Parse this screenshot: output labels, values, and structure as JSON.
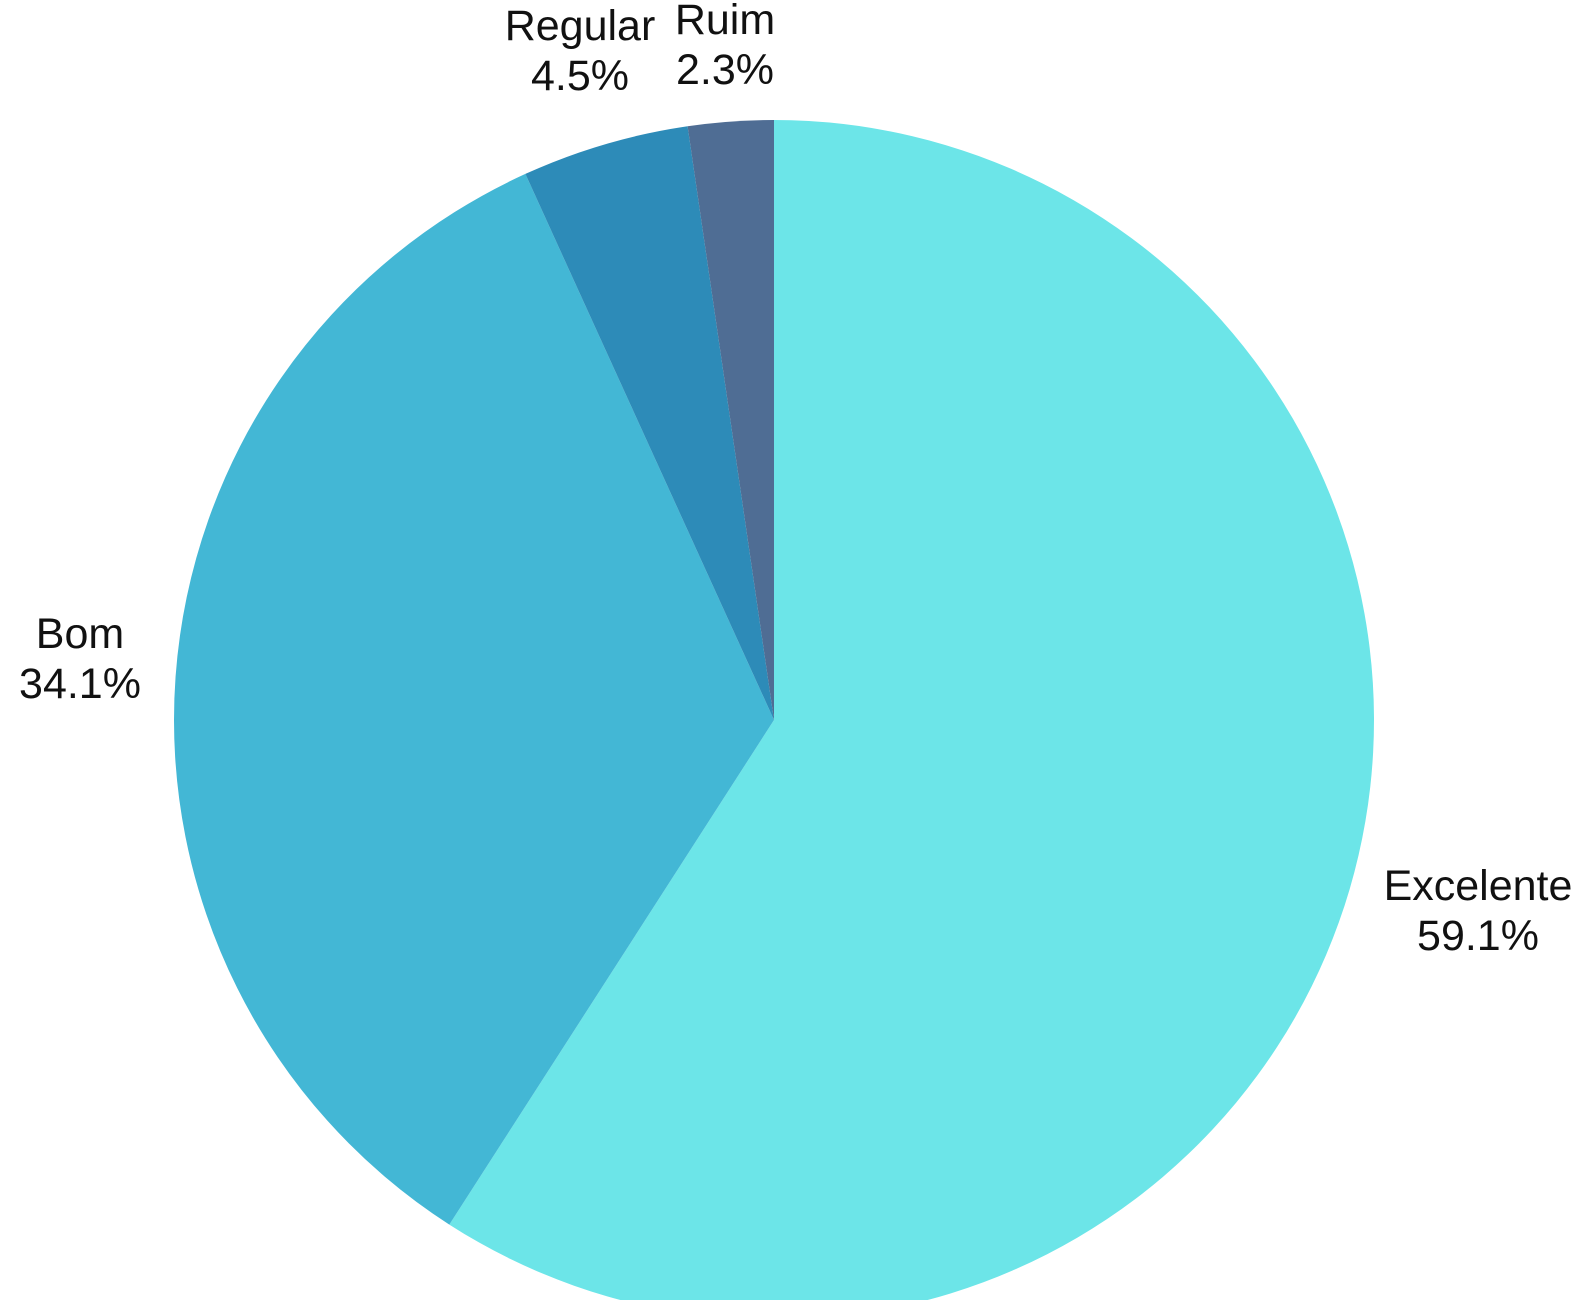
{
  "chart_data": {
    "type": "pie",
    "slices": [
      {
        "label": "Excelente",
        "value": 59.1,
        "value_label": "59.1%",
        "color": "#6ce5e8"
      },
      {
        "label": "Bom",
        "value": 34.1,
        "value_label": "34.1%",
        "color": "#43b7d5"
      },
      {
        "label": "Regular",
        "value": 4.5,
        "value_label": "4.5%",
        "color": "#2d8bb8"
      },
      {
        "label": "Ruim",
        "value": 2.3,
        "value_label": "2.3%",
        "color": "#4f6d94"
      }
    ],
    "start_angle": "12 o'clock",
    "direction": "clockwise"
  }
}
